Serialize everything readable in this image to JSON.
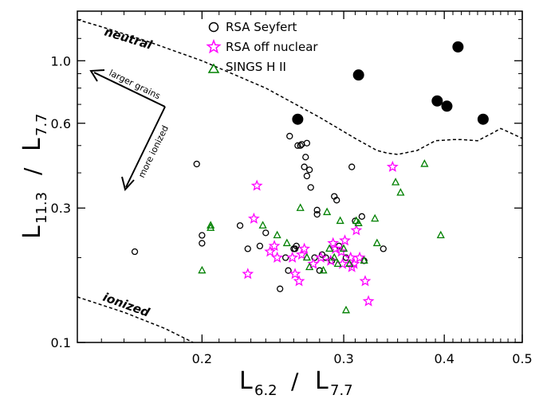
{
  "chart_data": {
    "type": "scatter",
    "xscale": "log",
    "yscale": "log",
    "xlim": [
      0.14,
      0.5
    ],
    "ylim": [
      0.1,
      1.5
    ],
    "xticks": [
      0.2,
      0.3,
      0.4,
      0.5
    ],
    "xtick_labels": [
      "0.2",
      "0.3",
      "0.4",
      "0.5"
    ],
    "yticks": [
      0.1,
      0.3,
      0.6,
      1.0
    ],
    "ytick_labels": [
      "0.1",
      "0.3",
      "0.6",
      "1.0"
    ],
    "xlabel_main": "L",
    "xlabel_sub1": "6.2",
    "xlabel_sep": "/",
    "xlabel_sub2": "7.7",
    "ylabel_main": "L",
    "ylabel_sub1": "11.3",
    "ylabel_sep": "/",
    "ylabel_sub2": "7.7",
    "grid": false,
    "legend_position": "top",
    "series": [
      {
        "name": "RSA Seyfert",
        "marker": "circle-open",
        "color": "#000000",
        "points": [
          [
            0.165,
            0.21
          ],
          [
            0.197,
            0.43
          ],
          [
            0.2,
            0.24
          ],
          [
            0.2,
            0.225
          ],
          [
            0.223,
            0.26
          ],
          [
            0.228,
            0.215
          ],
          [
            0.236,
            0.22
          ],
          [
            0.24,
            0.245
          ],
          [
            0.254,
            0.2
          ],
          [
            0.257,
            0.54
          ],
          [
            0.26,
            0.215
          ],
          [
            0.261,
            0.215
          ],
          [
            0.262,
            0.22
          ],
          [
            0.265,
            0.5
          ],
          [
            0.266,
            0.505
          ],
          [
            0.268,
            0.42
          ],
          [
            0.269,
            0.455
          ],
          [
            0.27,
            0.51
          ],
          [
            0.27,
            0.39
          ],
          [
            0.272,
            0.41
          ],
          [
            0.273,
            0.355
          ],
          [
            0.276,
            0.2
          ],
          [
            0.278,
            0.285
          ],
          [
            0.278,
            0.295
          ],
          [
            0.282,
            0.205
          ],
          [
            0.285,
            0.2
          ],
          [
            0.29,
            0.195
          ],
          [
            0.292,
            0.33
          ],
          [
            0.294,
            0.32
          ],
          [
            0.296,
            0.22
          ],
          [
            0.302,
            0.2
          ],
          [
            0.307,
            0.42
          ],
          [
            0.31,
            0.27
          ],
          [
            0.316,
            0.28
          ],
          [
            0.318,
            0.195
          ],
          [
            0.336,
            0.215
          ],
          [
            0.25,
            0.155
          ],
          [
            0.256,
            0.18
          ],
          [
            0.28,
            0.18
          ],
          [
            0.263,
            0.5
          ]
        ]
      },
      {
        "name": "RSA off nuclear",
        "marker": "star-open",
        "color": "#ff00ff",
        "points": [
          [
            0.228,
            0.175
          ],
          [
            0.232,
            0.275
          ],
          [
            0.234,
            0.36
          ],
          [
            0.243,
            0.21
          ],
          [
            0.246,
            0.22
          ],
          [
            0.248,
            0.2
          ],
          [
            0.259,
            0.2
          ],
          [
            0.261,
            0.175
          ],
          [
            0.264,
            0.165
          ],
          [
            0.266,
            0.205
          ],
          [
            0.268,
            0.215
          ],
          [
            0.275,
            0.19
          ],
          [
            0.281,
            0.2
          ],
          [
            0.289,
            0.195
          ],
          [
            0.291,
            0.225
          ],
          [
            0.293,
            0.215
          ],
          [
            0.298,
            0.21
          ],
          [
            0.299,
            0.19
          ],
          [
            0.301,
            0.23
          ],
          [
            0.306,
            0.2
          ],
          [
            0.307,
            0.185
          ],
          [
            0.309,
            0.19
          ],
          [
            0.311,
            0.25
          ],
          [
            0.314,
            0.2
          ],
          [
            0.319,
            0.165
          ],
          [
            0.322,
            0.14
          ],
          [
            0.345,
            0.42
          ]
        ]
      },
      {
        "name": "SINGS H II",
        "marker": "triangle-open",
        "color": "#008000",
        "points": [
          [
            0.2,
            0.18
          ],
          [
            0.205,
            0.26
          ],
          [
            0.205,
            0.255
          ],
          [
            0.238,
            0.26
          ],
          [
            0.248,
            0.24
          ],
          [
            0.255,
            0.225
          ],
          [
            0.265,
            0.3
          ],
          [
            0.27,
            0.2
          ],
          [
            0.272,
            0.185
          ],
          [
            0.286,
            0.29
          ],
          [
            0.288,
            0.215
          ],
          [
            0.292,
            0.2
          ],
          [
            0.295,
            0.19
          ],
          [
            0.297,
            0.27
          ],
          [
            0.3,
            0.215
          ],
          [
            0.302,
            0.13
          ],
          [
            0.305,
            0.19
          ],
          [
            0.311,
            0.27
          ],
          [
            0.313,
            0.265
          ],
          [
            0.328,
            0.275
          ],
          [
            0.33,
            0.225
          ],
          [
            0.348,
            0.37
          ],
          [
            0.353,
            0.34
          ],
          [
            0.378,
            0.43
          ],
          [
            0.396,
            0.24
          ],
          [
            0.318,
            0.195
          ],
          [
            0.283,
            0.18
          ]
        ]
      },
      {
        "name": "",
        "marker": "circle-filled",
        "color": "#000000",
        "points": [
          [
            0.263,
            0.62
          ],
          [
            0.313,
            0.89
          ],
          [
            0.392,
            0.72
          ],
          [
            0.403,
            0.69
          ],
          [
            0.416,
            1.12
          ],
          [
            0.447,
            0.62
          ]
        ]
      }
    ],
    "curves": [
      {
        "label": "neutral",
        "style": "dashed",
        "points": [
          [
            0.14,
            1.4
          ],
          [
            0.15,
            1.32
          ],
          [
            0.17,
            1.18
          ],
          [
            0.2,
            1.0
          ],
          [
            0.24,
            0.8
          ],
          [
            0.28,
            0.63
          ],
          [
            0.31,
            0.53
          ],
          [
            0.33,
            0.48
          ],
          [
            0.34,
            0.47
          ],
          [
            0.35,
            0.465
          ],
          [
            0.37,
            0.48
          ],
          [
            0.39,
            0.52
          ],
          [
            0.41,
            0.525
          ],
          [
            0.42,
            0.525
          ],
          [
            0.44,
            0.52
          ],
          [
            0.46,
            0.555
          ],
          [
            0.47,
            0.575
          ],
          [
            0.48,
            0.56
          ],
          [
            0.5,
            0.53
          ]
        ]
      },
      {
        "label": "ionized",
        "style": "dashed",
        "points": [
          [
            0.14,
            0.145
          ],
          [
            0.16,
            0.128
          ],
          [
            0.18,
            0.112
          ],
          [
            0.195,
            0.1
          ]
        ]
      }
    ],
    "arrows": [
      {
        "label": "larger grains"
      },
      {
        "label": "more ionized"
      }
    ]
  }
}
